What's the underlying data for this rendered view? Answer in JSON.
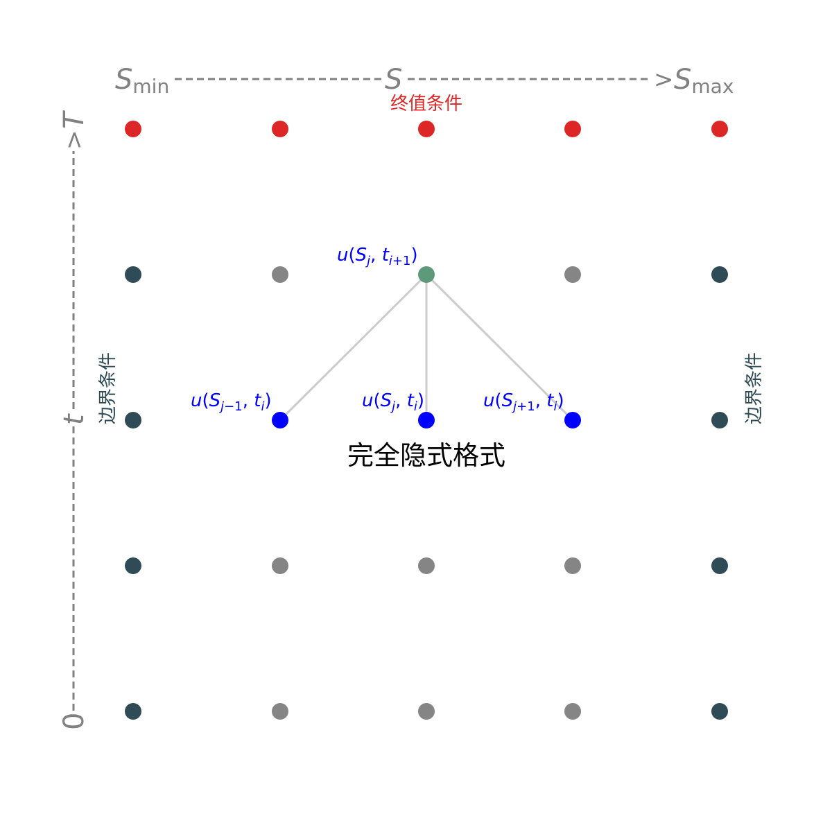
{
  "s_axis": {
    "left_label_main": "S",
    "left_label_sub": "min",
    "middle_label": "S",
    "arrow_glyph": ">",
    "right_label_main": "S",
    "right_label_sub": "max"
  },
  "t_axis": {
    "bottom_label": "0",
    "middle_label": "t",
    "arrow_glyph": ">",
    "top_label": "T"
  },
  "terminal_condition_label": "终值条件",
  "boundary_left_label": "边界条件",
  "boundary_right_label": "边界条件",
  "scheme_title": "完全隐式格式",
  "stencil_labels": {
    "top": "u(S_j, t_{i+1})",
    "left": "u(S_{j-1}, t_i)",
    "center": "u(S_j, t_i)",
    "right": "u(S_{j+1}, t_i)"
  },
  "colors": {
    "terminal": "#dd2626",
    "boundary": "#2f4b55",
    "interior": "#858585",
    "stencil_top": "#5e9a7a",
    "stencil_bottom": "#0000ff",
    "labels_blue": "#0000ff",
    "terminal_text": "#dd2626",
    "boundary_text": "#2f4b55",
    "axis_text": "#808080"
  },
  "grid": {
    "columns": 5,
    "rows": 5,
    "rows_top_to_bottom": [
      [
        "terminal",
        "terminal",
        "terminal",
        "terminal",
        "terminal"
      ],
      [
        "boundary",
        "interior",
        "stencil_top",
        "interior",
        "boundary"
      ],
      [
        "boundary",
        "stencil_bottom",
        "stencil_bottom",
        "stencil_bottom",
        "boundary"
      ],
      [
        "boundary",
        "interior",
        "interior",
        "interior",
        "boundary"
      ],
      [
        "boundary",
        "interior",
        "interior",
        "interior",
        "boundary"
      ]
    ]
  }
}
